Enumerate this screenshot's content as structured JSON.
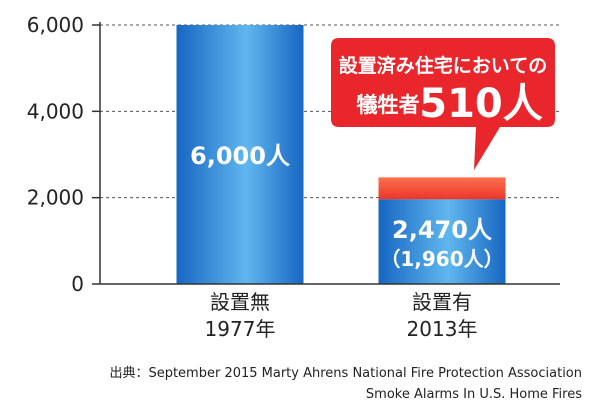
{
  "chart_data": {
    "type": "bar",
    "categories": [
      {
        "line1": "設置無",
        "line2": "1977年"
      },
      {
        "line1": "設置有",
        "line2": "2013年"
      }
    ],
    "values": [
      6000,
      2470
    ],
    "sub_values": [
      null,
      1960
    ],
    "data_labels": [
      {
        "main": "6,000人",
        "sub": ""
      },
      {
        "main": "2,470人",
        "sub": "（1,960人）"
      }
    ],
    "yticks": [
      "0",
      "2,000",
      "4,000",
      "6,000"
    ],
    "ytick_values": [
      0,
      2000,
      4000,
      6000
    ],
    "ylim": [
      0,
      6000
    ],
    "grid": true,
    "callout": {
      "line1": "設置済み住宅においての",
      "line2_prefix": "犠牲者",
      "line2_value": "510人"
    },
    "source": {
      "line1": "出典：September 2015 Marty Ahrens National Fire Protection Association",
      "line2": "Smoke Alarms In U.S. Home Fires"
    },
    "colors": {
      "bar_dark": "#1766c2",
      "bar_light": "#5fb7ee",
      "bar_top": "#e8362c",
      "bar_top_light": "#ff6f4d",
      "callout": "#e8262c",
      "axis": "#333333",
      "grid": "#555555"
    }
  }
}
